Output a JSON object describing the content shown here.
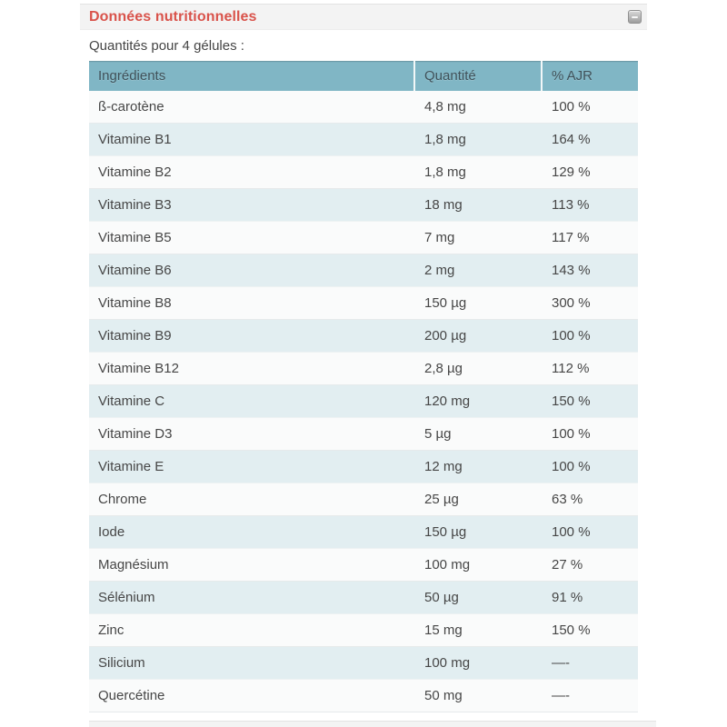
{
  "panel": {
    "title": "Données nutritionnelles",
    "subtitle": "Quantités pour 4 gélules :"
  },
  "table": {
    "columns": [
      "Ingrédients",
      "Quantité",
      "% AJR"
    ],
    "rows": [
      {
        "ingredient": "ß-carotène",
        "quantity": "4,8 mg",
        "ajr": "100 %"
      },
      {
        "ingredient": "Vitamine B1",
        "quantity": "1,8 mg",
        "ajr": "164 %"
      },
      {
        "ingredient": "Vitamine B2",
        "quantity": "1,8 mg",
        "ajr": "129 %"
      },
      {
        "ingredient": "Vitamine B3",
        "quantity": "18 mg",
        "ajr": "113 %"
      },
      {
        "ingredient": "Vitamine B5",
        "quantity": "7 mg",
        "ajr": "117 %"
      },
      {
        "ingredient": "Vitamine B6",
        "quantity": "2 mg",
        "ajr": "143 %"
      },
      {
        "ingredient": "Vitamine B8",
        "quantity": "150 µg",
        "ajr": "300 %"
      },
      {
        "ingredient": "Vitamine B9",
        "quantity": "200 µg",
        "ajr": "100 %"
      },
      {
        "ingredient": "Vitamine B12",
        "quantity": "2,8 µg",
        "ajr": "112 %"
      },
      {
        "ingredient": "Vitamine C",
        "quantity": "120 mg",
        "ajr": "150 %"
      },
      {
        "ingredient": "Vitamine D3",
        "quantity": "5 µg",
        "ajr": "100 %"
      },
      {
        "ingredient": "Vitamine E",
        "quantity": "12 mg",
        "ajr": "100 %"
      },
      {
        "ingredient": "Chrome",
        "quantity": "25 µg",
        "ajr": "63 %"
      },
      {
        "ingredient": "Iode",
        "quantity": "150 µg",
        "ajr": "100 %"
      },
      {
        "ingredient": "Magnésium",
        "quantity": "100 mg",
        "ajr": "27 %"
      },
      {
        "ingredient": "Sélénium",
        "quantity": "50 µg",
        "ajr": "91 %"
      },
      {
        "ingredient": "Zinc",
        "quantity": "15 mg",
        "ajr": "150 %"
      },
      {
        "ingredient": "Silicium",
        "quantity": "100 mg",
        "ajr": "—-"
      },
      {
        "ingredient": "Quercétine",
        "quantity": "50 mg",
        "ajr": "—-"
      }
    ]
  },
  "colors": {
    "title_red": "#d9534b",
    "header_teal": "#80b6c5",
    "alt_row_teal": "#e2eef1",
    "strip_gray": "#f3f3f3"
  }
}
